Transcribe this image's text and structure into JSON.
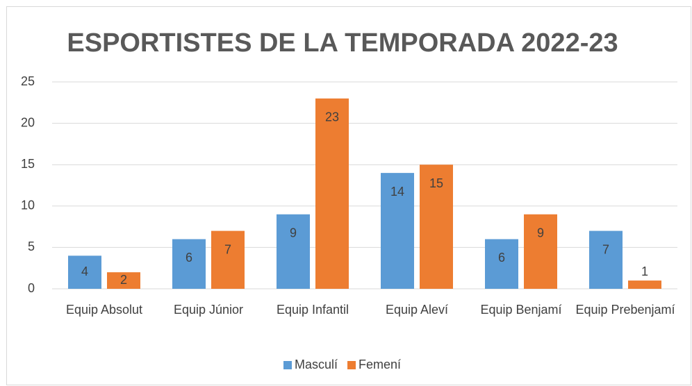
{
  "chart_data": {
    "type": "bar",
    "title": "ESPORTISTES DE LA TEMPORADA 2022-23",
    "categories": [
      "Equip Absolut",
      "Equip Júnior",
      "Equip Infantil",
      "Equip Aleví",
      "Equip Benjamí",
      "Equip Prebenjamí"
    ],
    "series": [
      {
        "name": "Masculí",
        "color": "#5b9bd5",
        "values": [
          4,
          6,
          9,
          14,
          6,
          7
        ]
      },
      {
        "name": "Femení",
        "color": "#ed7d31",
        "values": [
          2,
          7,
          23,
          15,
          9,
          1
        ]
      }
    ],
    "ylim": [
      0,
      25
    ],
    "yticks": [
      0,
      5,
      10,
      15,
      20,
      25
    ],
    "grid": true,
    "legend": "bottom"
  }
}
